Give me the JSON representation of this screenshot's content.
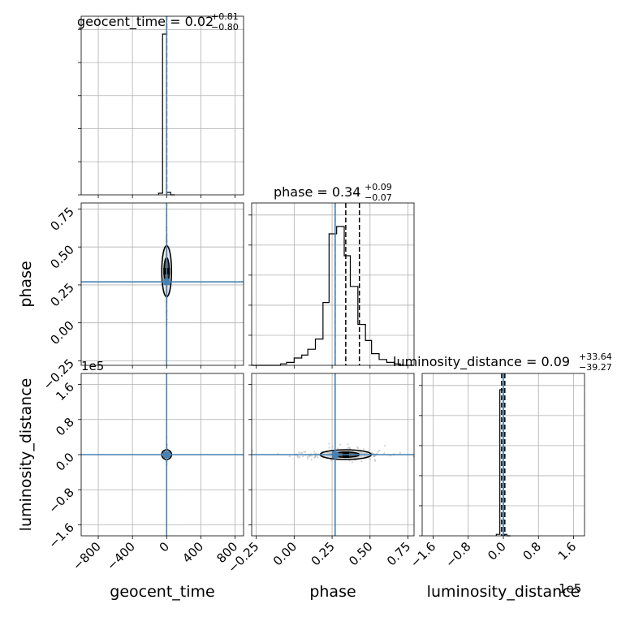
{
  "chart_data": {
    "type": "corner",
    "parameters": [
      "geocent_time",
      "phase",
      "luminosity_distance"
    ],
    "axes": {
      "geocent_time": {
        "range": [
          -1000,
          900
        ],
        "ticks": [
          -800,
          -400,
          0,
          400,
          800
        ],
        "tick_labels": [
          "−800",
          "−400",
          "0",
          "400",
          "800"
        ],
        "truth": 0,
        "quantiles": [
          -0.78,
          0.02,
          0.83
        ]
      },
      "phase": {
        "range": [
          -0.28,
          0.79
        ],
        "ticks": [
          -0.25,
          0.0,
          0.25,
          0.5,
          0.75
        ],
        "tick_labels": [
          "−0.25",
          "0.00",
          "0.25",
          "0.50",
          "0.75"
        ],
        "truth": 0.27,
        "quantiles": [
          0.27,
          0.34,
          0.43
        ]
      },
      "luminosity_distance": {
        "range": [
          -185000,
          185000
        ],
        "ticks": [
          -160000,
          -80000,
          0,
          80000,
          160000
        ],
        "tick_labels": [
          "−1.6",
          "−0.8",
          "0.0",
          "0.8",
          "1.6"
        ],
        "offset_text": "1e5",
        "truth": 0,
        "quantiles": [
          -3918,
          9,
          3373
        ]
      }
    },
    "titles": {
      "geocent_time": {
        "text": "geocent_time = 0.02",
        "upper": "+0.81",
        "lower": "−0.80"
      },
      "phase": {
        "text": "phase = 0.34",
        "upper": "+0.09",
        "lower": "−0.07"
      },
      "luminosity_distance": {
        "text": "luminosity_distance = 0.09",
        "upper": "+33.64",
        "lower": "−39.27"
      }
    },
    "histograms": {
      "geocent_time": {
        "edges": [
          -95,
          -47.5,
          0,
          47.5,
          95
        ],
        "counts": [
          0.01,
          1.0,
          0.015,
          0.0
        ]
      },
      "phase": {
        "edges": [
          -0.28,
          -0.23,
          -0.19,
          -0.14,
          -0.09,
          -0.05,
          0.0,
          0.05,
          0.09,
          0.14,
          0.19,
          0.23,
          0.28,
          0.33,
          0.37,
          0.42,
          0.47,
          0.51,
          0.56,
          0.61,
          0.66,
          0.7,
          0.75,
          0.79
        ],
        "counts": [
          0.0,
          0.0,
          0.0,
          0.0,
          0.01,
          0.02,
          0.05,
          0.07,
          0.11,
          0.18,
          0.43,
          0.9,
          0.95,
          0.75,
          0.54,
          0.28,
          0.17,
          0.08,
          0.04,
          0.02,
          0.01,
          0.0,
          0.0
        ]
      },
      "luminosity_distance": {
        "edges": [
          -16000,
          -8000,
          0,
          8000,
          16000
        ],
        "counts": [
          0.01,
          1.0,
          0.01,
          0.0
        ]
      }
    },
    "grid": true
  }
}
